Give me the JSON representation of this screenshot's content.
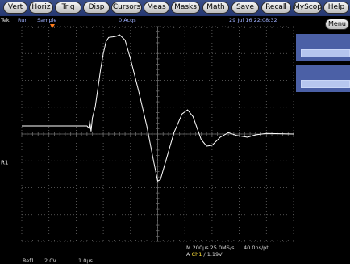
{
  "menubar": {
    "buttons": [
      {
        "key": "vert",
        "label": "Vert"
      },
      {
        "key": "horiz",
        "label": "Horiz"
      },
      {
        "key": "trig",
        "label": "Trig"
      },
      {
        "key": "disp",
        "label": "Disp"
      },
      {
        "key": "cursors",
        "label": "Cursors"
      },
      {
        "key": "meas",
        "label": "Meas"
      },
      {
        "key": "masks",
        "label": "Masks"
      },
      {
        "key": "math",
        "label": "Math"
      },
      {
        "key": "save",
        "label": "Save"
      },
      {
        "key": "recall",
        "label": "Recall"
      },
      {
        "key": "myscope",
        "label": "MyScope"
      },
      {
        "key": "help",
        "label": "Help"
      }
    ]
  },
  "status": {
    "brand": "Tek",
    "run_state": "Run",
    "mode": "Sample",
    "acqs": "0 Acqs",
    "datetime": "29 Jul 16 22:08:32"
  },
  "side_panel": {
    "menu_label": "Menu"
  },
  "ref_marker": "R1",
  "readouts": {
    "timebase": "M 200μs 25.0MS/s",
    "resolution": "40.0ns/pt",
    "trigger_prefix": "A",
    "trigger_channel": "Ch1",
    "trigger_slope": "/",
    "trigger_level": "1.19V",
    "ref_label": "Ref1",
    "ref_scale": "2.0V",
    "ref_time": "1.0μs"
  },
  "colors": {
    "menubar": "#2c3f7c",
    "panel": "#4b60a6",
    "grid": "#6a6a6a",
    "trace": "#ffffff",
    "trigger_marker": "#ff7a1a",
    "channel1": "#ffe23a"
  },
  "waveform": {
    "divisions_x": 10,
    "divisions_y": 8,
    "baseline_div": 0.3,
    "points": [
      [
        0.0,
        0.3
      ],
      [
        1.0,
        0.3
      ],
      [
        2.0,
        0.3
      ],
      [
        2.4,
        0.3
      ],
      [
        2.47,
        0.22
      ],
      [
        2.5,
        0.5
      ],
      [
        2.55,
        0.1
      ],
      [
        2.6,
        0.6
      ],
      [
        2.7,
        1.0
      ],
      [
        2.8,
        1.7
      ],
      [
        2.9,
        2.4
      ],
      [
        3.0,
        3.0
      ],
      [
        3.1,
        3.45
      ],
      [
        3.2,
        3.6
      ],
      [
        3.35,
        3.62
      ],
      [
        3.5,
        3.65
      ],
      [
        3.6,
        3.7
      ],
      [
        3.8,
        3.5
      ],
      [
        4.0,
        2.8
      ],
      [
        4.3,
        1.6
      ],
      [
        4.6,
        0.3
      ],
      [
        4.85,
        -1.0
      ],
      [
        5.0,
        -1.75
      ],
      [
        5.1,
        -1.7
      ],
      [
        5.3,
        -1.0
      ],
      [
        5.6,
        0.05
      ],
      [
        5.9,
        0.75
      ],
      [
        6.1,
        0.9
      ],
      [
        6.3,
        0.65
      ],
      [
        6.6,
        -0.2
      ],
      [
        6.8,
        -0.45
      ],
      [
        7.0,
        -0.42
      ],
      [
        7.3,
        -0.12
      ],
      [
        7.6,
        0.05
      ],
      [
        7.9,
        -0.05
      ],
      [
        8.3,
        -0.12
      ],
      [
        8.6,
        -0.03
      ],
      [
        9.0,
        0.02
      ],
      [
        10.0,
        0.0
      ]
    ]
  }
}
